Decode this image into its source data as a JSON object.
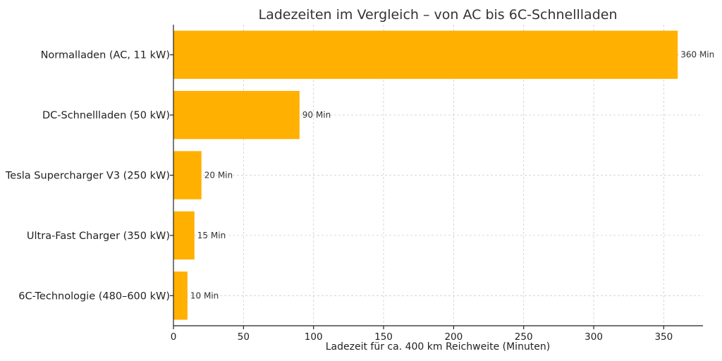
{
  "chart_data": {
    "type": "bar",
    "orientation": "horizontal",
    "title": "Ladezeiten im Vergleich – von AC bis 6C-Schnellladen",
    "xlabel": "Ladezeit für ca. 400 km Reichweite (Minuten)",
    "ylabel": "",
    "categories": [
      "Normalladen (AC, 11 kW)",
      "DC-Schnellladen (50 kW)",
      "Tesla Supercharger V3 (250 kW)",
      "Ultra-Fast Charger (350 kW)",
      "6C-Technologie (480–600 kW)"
    ],
    "values": [
      360,
      90,
      20,
      15,
      10
    ],
    "data_labels": [
      "360 Min",
      "90 Min",
      "20 Min",
      "15 Min",
      "10 Min"
    ],
    "xlim": [
      0,
      378
    ],
    "xticks": [
      0,
      50,
      100,
      150,
      200,
      250,
      300,
      350
    ],
    "grid": true,
    "bar_color": "#FFB000"
  }
}
